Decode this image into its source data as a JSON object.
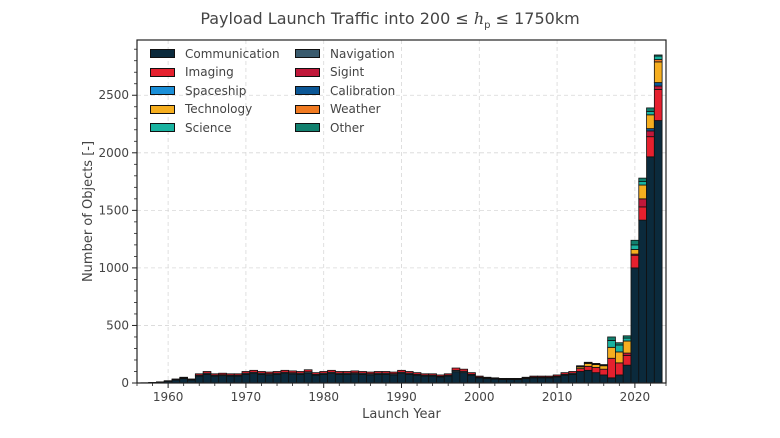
{
  "chart_data": {
    "type": "bar",
    "stacked": true,
    "title": {
      "prefix": "Payload Launch Traffic into 200 ",
      "le1": "≤",
      "var": "h",
      "sub": "p",
      "le2": "≤",
      "suffix": " 1750km"
    },
    "xlabel": "Launch Year",
    "ylabel": "Number of Objects [-]",
    "xlim": [
      1956,
      2024
    ],
    "ylim": [
      0,
      2980
    ],
    "xticks": [
      1960,
      1970,
      1980,
      1990,
      2000,
      2010,
      2020
    ],
    "yticks": [
      0,
      500,
      1000,
      1500,
      2000,
      2500
    ],
    "grid": true,
    "legend_position": "top-left",
    "legend": [
      "Communication",
      "Navigation",
      "Imaging",
      "Sigint",
      "Spaceship",
      "Calibration",
      "Technology",
      "Weather",
      "Science",
      "Other"
    ],
    "years": [
      1957,
      1958,
      1959,
      1960,
      1961,
      1962,
      1963,
      1964,
      1965,
      1966,
      1967,
      1968,
      1969,
      1970,
      1971,
      1972,
      1973,
      1974,
      1975,
      1976,
      1977,
      1978,
      1979,
      1980,
      1981,
      1982,
      1983,
      1984,
      1985,
      1986,
      1987,
      1988,
      1989,
      1990,
      1991,
      1992,
      1993,
      1994,
      1995,
      1996,
      1997,
      1998,
      1999,
      2000,
      2001,
      2002,
      2003,
      2004,
      2005,
      2006,
      2007,
      2008,
      2009,
      2010,
      2011,
      2012,
      2013,
      2014,
      2015,
      2016,
      2017,
      2018,
      2019,
      2020,
      2021,
      2022,
      2023
    ],
    "series": [
      {
        "name": "Communication",
        "color": "#0b2a3c",
        "values": [
          2,
          4,
          8,
          15,
          26,
          38,
          26,
          60,
          75,
          60,
          64,
          60,
          60,
          75,
          82,
          75,
          71,
          75,
          82,
          79,
          75,
          86,
          68,
          75,
          82,
          75,
          75,
          79,
          75,
          71,
          75,
          75,
          71,
          82,
          75,
          68,
          60,
          60,
          52,
          60,
          98,
          90,
          68,
          45,
          38,
          34,
          30,
          30,
          30,
          38,
          45,
          45,
          45,
          52,
          68,
          75,
          100,
          110,
          90,
          70,
          45,
          70,
          155,
          1000,
          1415,
          1965,
          2280
        ]
      },
      {
        "name": "Navigation",
        "color": "#3a5b6e",
        "values": [
          0,
          0,
          1,
          2,
          4,
          5,
          4,
          8,
          10,
          8,
          8,
          8,
          8,
          10,
          11,
          10,
          10,
          10,
          11,
          10,
          10,
          12,
          8,
          10,
          11,
          10,
          10,
          10,
          10,
          10,
          10,
          10,
          10,
          11,
          10,
          8,
          8,
          8,
          7,
          8,
          12,
          12,
          8,
          6,
          5,
          4,
          4,
          4,
          4,
          5,
          6,
          6,
          6,
          7,
          8,
          10,
          0,
          0,
          0,
          0,
          0,
          0,
          0,
          0,
          0,
          0,
          0
        ]
      },
      {
        "name": "Imaging",
        "color": "#e5202e",
        "values": [
          0,
          1,
          1,
          3,
          5,
          7,
          5,
          12,
          15,
          12,
          13,
          12,
          12,
          15,
          17,
          15,
          14,
          15,
          17,
          16,
          15,
          17,
          14,
          15,
          17,
          15,
          15,
          16,
          15,
          14,
          15,
          15,
          14,
          17,
          15,
          14,
          12,
          12,
          11,
          12,
          20,
          18,
          14,
          9,
          7,
          7,
          6,
          6,
          6,
          7,
          9,
          9,
          9,
          11,
          14,
          15,
          25,
          35,
          45,
          50,
          170,
          105,
          85,
          110,
          115,
          175,
          270
        ]
      },
      {
        "name": "Sigint",
        "color": "#c0183a",
        "values": [
          0,
          0,
          0,
          0,
          0,
          0,
          0,
          0,
          0,
          0,
          0,
          0,
          0,
          0,
          0,
          0,
          0,
          0,
          0,
          0,
          0,
          0,
          0,
          0,
          0,
          0,
          0,
          0,
          0,
          0,
          0,
          0,
          0,
          0,
          0,
          0,
          0,
          0,
          0,
          0,
          0,
          0,
          0,
          0,
          0,
          0,
          0,
          0,
          0,
          0,
          0,
          0,
          0,
          0,
          0,
          0,
          0,
          0,
          0,
          0,
          0,
          0,
          20,
          10,
          70,
          50,
          30
        ]
      },
      {
        "name": "Spaceship",
        "color": "#1a8fd8",
        "values": [
          0,
          0,
          0,
          0,
          0,
          0,
          0,
          0,
          0,
          0,
          0,
          0,
          0,
          0,
          0,
          0,
          0,
          0,
          0,
          0,
          0,
          0,
          0,
          0,
          0,
          0,
          0,
          0,
          0,
          0,
          0,
          0,
          0,
          0,
          0,
          0,
          0,
          0,
          0,
          0,
          0,
          0,
          0,
          0,
          0,
          0,
          0,
          0,
          0,
          0,
          0,
          0,
          0,
          0,
          0,
          0,
          0,
          0,
          0,
          0,
          0,
          0,
          0,
          0,
          0,
          0,
          0
        ]
      },
      {
        "name": "Calibration",
        "color": "#0b5796",
        "values": [
          0,
          0,
          0,
          0,
          0,
          0,
          0,
          0,
          0,
          0,
          0,
          0,
          0,
          0,
          0,
          0,
          0,
          0,
          0,
          0,
          0,
          0,
          0,
          0,
          0,
          0,
          0,
          0,
          0,
          0,
          0,
          0,
          0,
          0,
          0,
          0,
          0,
          0,
          0,
          0,
          0,
          0,
          0,
          0,
          0,
          0,
          0,
          0,
          0,
          0,
          0,
          0,
          0,
          0,
          0,
          0,
          0,
          0,
          0,
          0,
          0,
          0,
          0,
          0,
          0,
          20,
          30
        ]
      },
      {
        "name": "Technology",
        "color": "#f6ae1f",
        "values": [
          0,
          0,
          0,
          0,
          0,
          0,
          0,
          0,
          0,
          0,
          0,
          0,
          0,
          0,
          0,
          0,
          0,
          0,
          0,
          0,
          0,
          0,
          0,
          0,
          0,
          0,
          0,
          0,
          0,
          0,
          0,
          0,
          0,
          0,
          0,
          0,
          0,
          0,
          0,
          0,
          0,
          0,
          0,
          0,
          0,
          0,
          0,
          0,
          0,
          0,
          0,
          0,
          0,
          0,
          0,
          0,
          15,
          25,
          25,
          30,
          95,
          95,
          105,
          40,
          120,
          120,
          180
        ]
      },
      {
        "name": "Weather",
        "color": "#f07a21",
        "values": [
          0,
          0,
          0,
          0,
          0,
          0,
          0,
          0,
          0,
          0,
          0,
          0,
          0,
          0,
          0,
          0,
          0,
          0,
          0,
          0,
          0,
          0,
          0,
          0,
          0,
          0,
          0,
          0,
          0,
          0,
          0,
          0,
          0,
          0,
          0,
          0,
          0,
          0,
          0,
          0,
          0,
          0,
          0,
          0,
          0,
          0,
          0,
          0,
          0,
          0,
          0,
          0,
          0,
          0,
          0,
          0,
          0,
          0,
          0,
          0,
          0,
          0,
          0,
          0,
          0,
          0,
          20
        ]
      },
      {
        "name": "Science",
        "color": "#19b3a0",
        "values": [
          0,
          0,
          0,
          0,
          0,
          0,
          0,
          0,
          0,
          0,
          0,
          0,
          0,
          0,
          0,
          0,
          0,
          0,
          0,
          0,
          0,
          0,
          0,
          0,
          0,
          0,
          0,
          0,
          0,
          0,
          0,
          0,
          0,
          0,
          0,
          0,
          0,
          0,
          0,
          0,
          0,
          0,
          0,
          0,
          0,
          0,
          0,
          0,
          0,
          0,
          0,
          0,
          0,
          0,
          0,
          0,
          5,
          5,
          5,
          5,
          60,
          60,
          25,
          40,
          30,
          30,
          30
        ]
      },
      {
        "name": "Other",
        "color": "#11806e",
        "values": [
          0,
          0,
          0,
          0,
          0,
          0,
          0,
          0,
          0,
          0,
          0,
          0,
          0,
          0,
          0,
          0,
          0,
          0,
          0,
          0,
          0,
          0,
          0,
          0,
          0,
          0,
          0,
          0,
          0,
          0,
          0,
          0,
          0,
          0,
          0,
          0,
          0,
          0,
          0,
          0,
          0,
          0,
          0,
          0,
          0,
          0,
          0,
          0,
          0,
          0,
          0,
          0,
          0,
          0,
          0,
          0,
          5,
          5,
          5,
          5,
          30,
          20,
          20,
          40,
          30,
          30,
          10
        ]
      }
    ]
  }
}
